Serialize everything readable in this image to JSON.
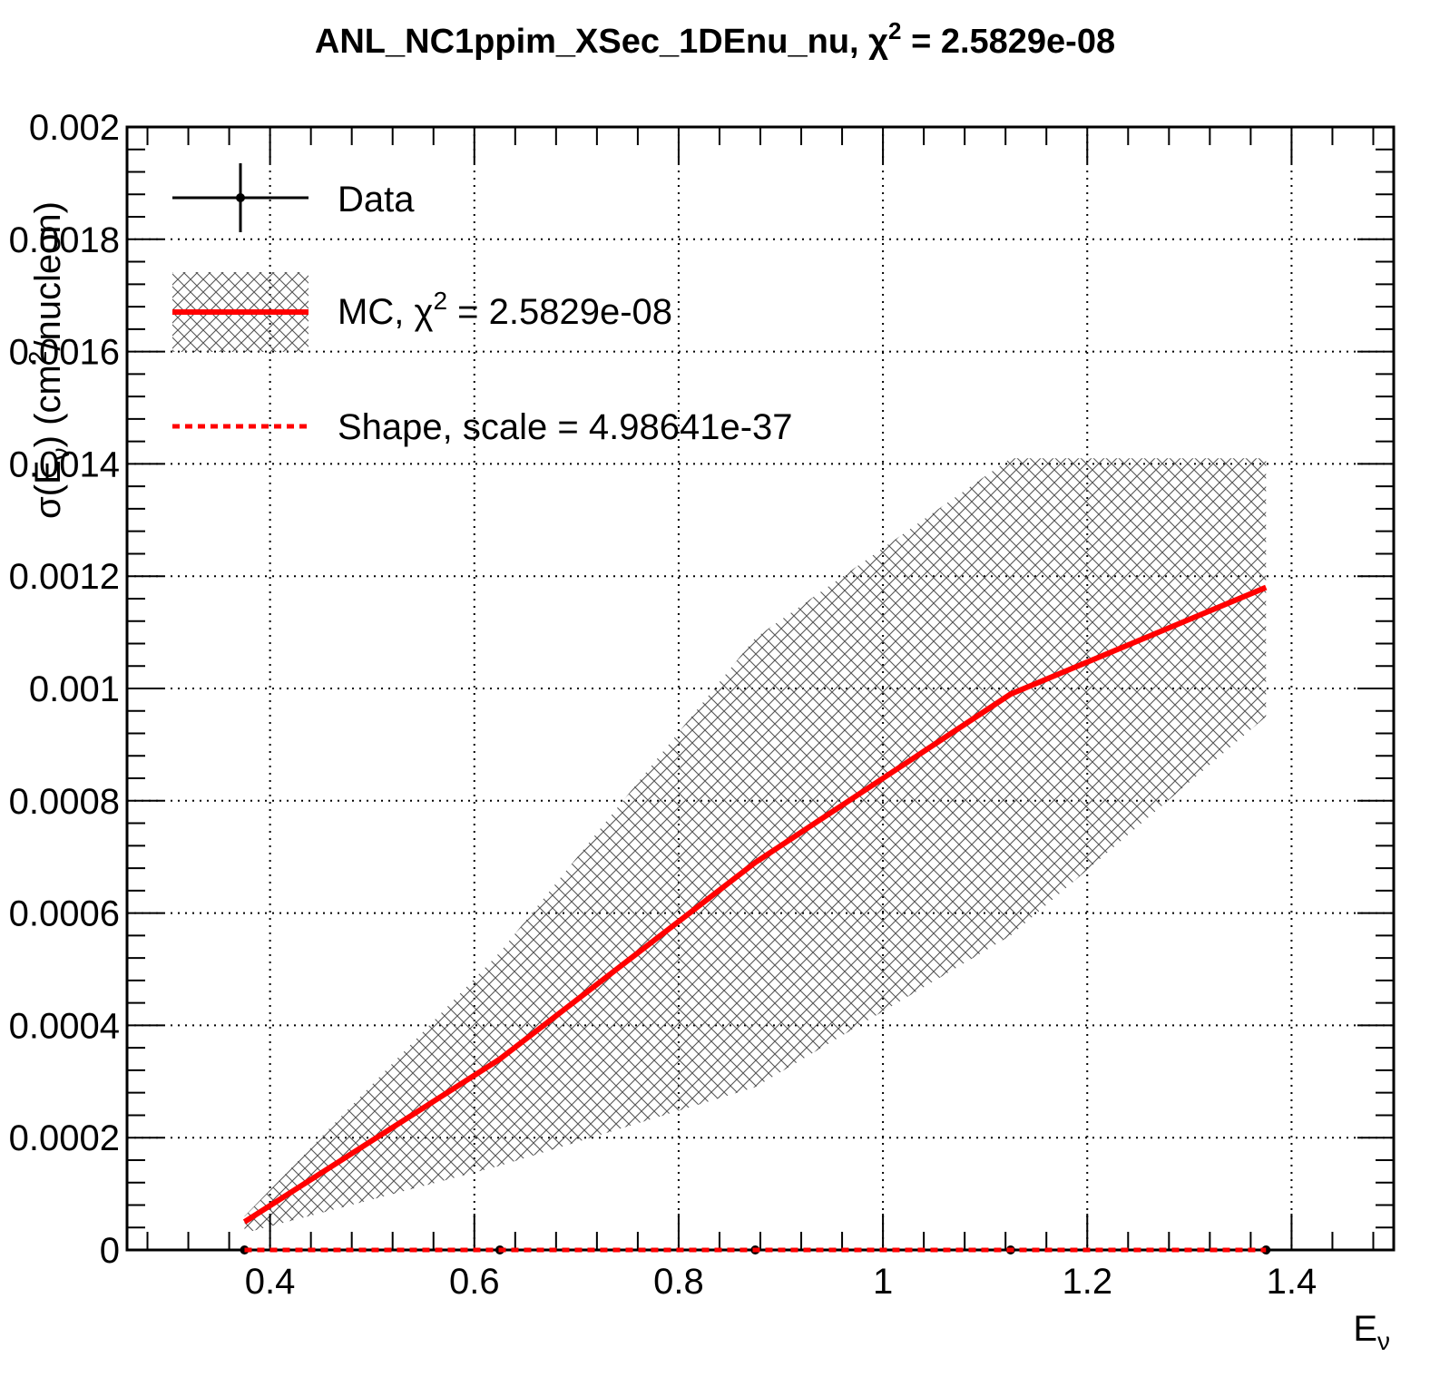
{
  "chart_data": {
    "type": "line",
    "title": "ANL_NC1ppim_XSec_1DEnu_nu,  χ² = 2.5829e-08",
    "title_parts": {
      "prefix": "ANL_NC1ppim_XSec_1DEnu_nu,  ",
      "chi": "χ",
      "exp": "2",
      "suffix": " = 2.5829e-08"
    },
    "xlabel": "E",
    "xlabel_sub": "ν",
    "ylabel": "σ(E",
    "ylabel_sub": "ν",
    "ylabel_tail": ") (cm",
    "ylabel_sup": "2",
    "ylabel_end": "/nucleon)",
    "xlim": [
      0.26,
      1.5
    ],
    "ylim": [
      0,
      0.002
    ],
    "xticks": [
      0.4,
      0.6,
      0.8,
      1.0,
      1.2,
      1.4
    ],
    "xtick_labels": [
      "0.4",
      "0.6",
      "0.8",
      "1",
      "1.2",
      "1.4"
    ],
    "yticks": [
      0,
      0.0002,
      0.0004,
      0.0006,
      0.0008,
      0.001,
      0.0012,
      0.0014,
      0.0016,
      0.0018,
      0.002
    ],
    "ytick_labels": [
      "0",
      "0.0002",
      "0.0004",
      "0.0006",
      "0.0008",
      "0.001",
      "0.0012",
      "0.0014",
      "0.0016",
      "0.0018",
      "0.002"
    ],
    "grid": true,
    "legend_position": "top-left",
    "series": [
      {
        "name": "Data",
        "style": "points-with-errors",
        "color": "#000000",
        "x": [
          0.375,
          0.625,
          0.875,
          1.125,
          1.375
        ],
        "y": [
          0,
          0,
          0,
          0,
          0
        ]
      },
      {
        "name": "MC",
        "legend_parts": {
          "prefix": "MC, ",
          "chi": "χ",
          "exp": "2",
          "suffix": " = 2.5829e-08"
        },
        "style": "line-with-band",
        "color": "#ff0000",
        "band_color": "#555555",
        "x": [
          0.375,
          0.625,
          0.875,
          1.125,
          1.375
        ],
        "y": [
          5e-05,
          0.00034,
          0.00069,
          0.00099,
          0.00118
        ],
        "band_low": [
          3e-05,
          0.00015,
          0.00029,
          0.00056,
          0.00095
        ],
        "band_high": [
          6e-05,
          0.00053,
          0.00109,
          0.00141,
          0.00141
        ]
      },
      {
        "name": "Shape, scale = 4.98641e-37",
        "style": "dashed-line",
        "color": "#ff0000",
        "x": [
          0.375,
          0.625,
          0.875,
          1.125,
          1.375
        ],
        "y": [
          0,
          0,
          0,
          0,
          0
        ]
      }
    ]
  }
}
